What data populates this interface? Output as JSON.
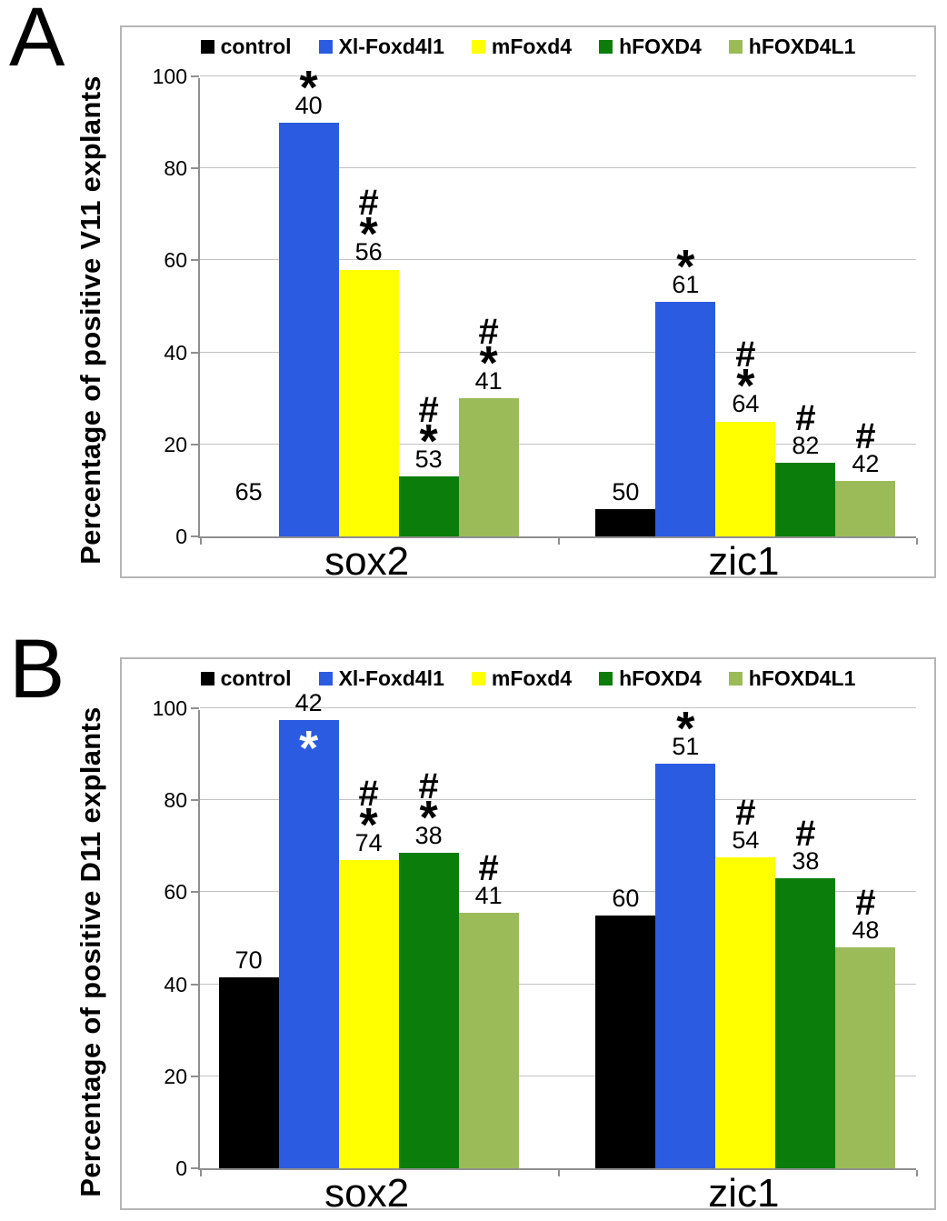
{
  "annotation_symbols": {
    "star": "*",
    "hash": "#"
  },
  "chart_data": [
    {
      "type": "bar",
      "panel_label": "A",
      "ylabel": "Percentage of positive V11 explants",
      "ylim": [
        0,
        100
      ],
      "yticks": [
        0,
        20,
        40,
        60,
        80,
        100
      ],
      "grid": true,
      "legend_position": "top",
      "categories": [
        "sox2",
        "zic1"
      ],
      "series": [
        {
          "name": "control",
          "color": "#000000",
          "values": [
            0,
            6
          ],
          "n_labels": [
            "65",
            "50"
          ],
          "marks": [
            [],
            []
          ],
          "label_lift": [
            30,
            0
          ]
        },
        {
          "name": "Xl-Foxd4l1",
          "color": "#2b5be0",
          "values": [
            90,
            51
          ],
          "n_labels": [
            "40",
            "61"
          ],
          "marks": [
            [
              "star"
            ],
            [
              "star"
            ]
          ]
        },
        {
          "name": "mFoxd4",
          "color": "#ffff00",
          "values": [
            58,
            25
          ],
          "n_labels": [
            "56",
            "64"
          ],
          "marks": [
            [
              "star",
              "hash"
            ],
            [
              "star",
              "hash"
            ]
          ]
        },
        {
          "name": "hFOXD4",
          "color": "#0b7d0b",
          "values": [
            13,
            16
          ],
          "n_labels": [
            "53",
            "82"
          ],
          "marks": [
            [
              "star",
              "hash"
            ],
            [
              "hash"
            ]
          ]
        },
        {
          "name": "hFOXD4L1",
          "color": "#9bbb59",
          "values": [
            30,
            12
          ],
          "n_labels": [
            "41",
            "42"
          ],
          "marks": [
            [
              "star",
              "hash"
            ],
            [
              "hash"
            ]
          ]
        }
      ]
    },
    {
      "type": "bar",
      "panel_label": "B",
      "ylabel": "Percentage of positive D11 explants",
      "ylim": [
        0,
        100
      ],
      "yticks": [
        0,
        20,
        40,
        60,
        80,
        100
      ],
      "grid": true,
      "legend_position": "top",
      "categories": [
        "sox2",
        "zic1"
      ],
      "series": [
        {
          "name": "control",
          "color": "#000000",
          "values": [
            41.5,
            55
          ],
          "n_labels": [
            "70",
            "60"
          ],
          "marks": [
            [],
            []
          ]
        },
        {
          "name": "Xl-Foxd4l1",
          "color": "#2b5be0",
          "values": [
            97.5,
            88
          ],
          "n_labels": [
            "42",
            "51"
          ],
          "marks": [
            [
              "star_inside"
            ],
            [
              "star"
            ]
          ]
        },
        {
          "name": "mFoxd4",
          "color": "#ffff00",
          "values": [
            67,
            67.5
          ],
          "n_labels": [
            "74",
            "54"
          ],
          "marks": [
            [
              "star",
              "hash"
            ],
            [
              "hash"
            ]
          ]
        },
        {
          "name": "hFOXD4",
          "color": "#0b7d0b",
          "values": [
            68.5,
            63
          ],
          "n_labels": [
            "38",
            "38"
          ],
          "marks": [
            [
              "star",
              "hash"
            ],
            [
              "hash"
            ]
          ]
        },
        {
          "name": "hFOXD4L1",
          "color": "#9bbb59",
          "values": [
            55.5,
            48
          ],
          "n_labels": [
            "41",
            "48"
          ],
          "marks": [
            [
              "hash"
            ],
            [
              "hash"
            ]
          ]
        }
      ]
    }
  ]
}
